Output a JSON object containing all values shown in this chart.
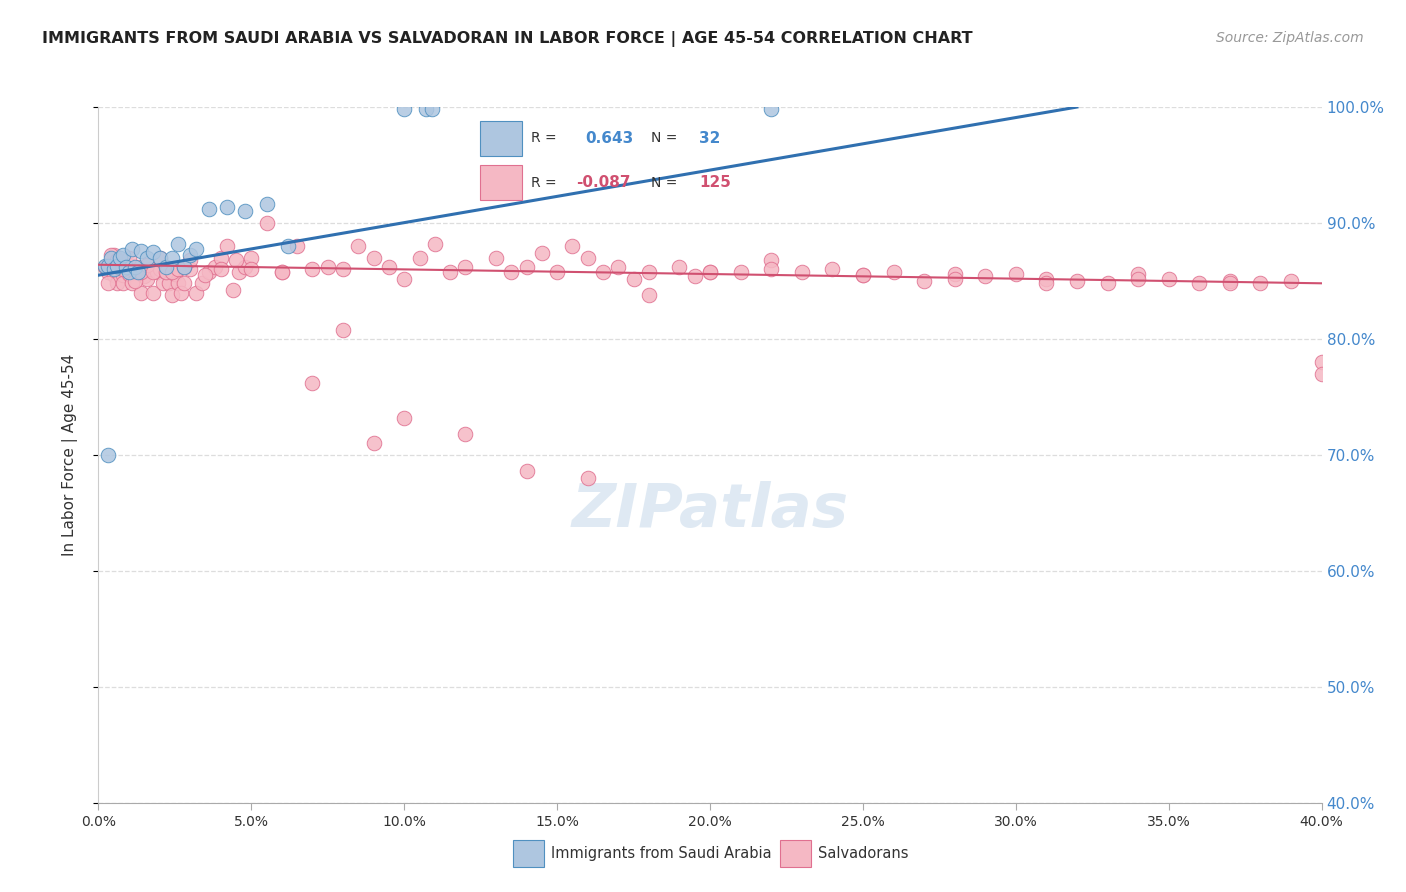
{
  "title": "IMMIGRANTS FROM SAUDI ARABIA VS SALVADORAN IN LABOR FORCE | AGE 45-54 CORRELATION CHART",
  "source": "Source: ZipAtlas.com",
  "ylabel": "In Labor Force | Age 45-54",
  "xlim": [
    0.0,
    0.4
  ],
  "ylim": [
    0.4,
    1.0
  ],
  "blue_R": 0.643,
  "blue_N": 32,
  "pink_R": -0.087,
  "pink_N": 125,
  "blue_color": "#aec6e0",
  "blue_edge_color": "#5090c0",
  "blue_line_color": "#3070b0",
  "pink_color": "#f5b8c4",
  "pink_edge_color": "#e07090",
  "pink_line_color": "#d05070",
  "right_axis_color": "#4488cc",
  "watermark": "ZIPatlas",
  "grid_color": "#dddddd",
  "blue_x": [
    0.002,
    0.003,
    0.004,
    0.005,
    0.006,
    0.007,
    0.008,
    0.009,
    0.01,
    0.011,
    0.012,
    0.013,
    0.014,
    0.016,
    0.018,
    0.02,
    0.022,
    0.024,
    0.026,
    0.028,
    0.03,
    0.032,
    0.036,
    0.042,
    0.048,
    0.055,
    0.062,
    0.1,
    0.107,
    0.109,
    0.22,
    0.003
  ],
  "blue_y": [
    0.863,
    0.863,
    0.87,
    0.86,
    0.863,
    0.87,
    0.872,
    0.862,
    0.858,
    0.878,
    0.862,
    0.858,
    0.876,
    0.87,
    0.875,
    0.87,
    0.862,
    0.87,
    0.882,
    0.862,
    0.872,
    0.878,
    0.912,
    0.914,
    0.91,
    0.916,
    0.88,
    0.998,
    0.998,
    0.998,
    0.998,
    0.7
  ],
  "pink_x": [
    0.002,
    0.003,
    0.004,
    0.005,
    0.005,
    0.006,
    0.007,
    0.008,
    0.008,
    0.009,
    0.01,
    0.01,
    0.011,
    0.012,
    0.013,
    0.014,
    0.015,
    0.016,
    0.017,
    0.018,
    0.019,
    0.02,
    0.021,
    0.022,
    0.023,
    0.024,
    0.025,
    0.026,
    0.027,
    0.028,
    0.03,
    0.032,
    0.034,
    0.036,
    0.038,
    0.04,
    0.042,
    0.044,
    0.046,
    0.048,
    0.05,
    0.055,
    0.06,
    0.065,
    0.07,
    0.075,
    0.08,
    0.085,
    0.09,
    0.095,
    0.1,
    0.105,
    0.11,
    0.115,
    0.12,
    0.13,
    0.135,
    0.14,
    0.145,
    0.15,
    0.155,
    0.16,
    0.165,
    0.17,
    0.175,
    0.18,
    0.19,
    0.195,
    0.2,
    0.21,
    0.22,
    0.23,
    0.24,
    0.25,
    0.26,
    0.27,
    0.28,
    0.29,
    0.3,
    0.31,
    0.32,
    0.33,
    0.34,
    0.35,
    0.36,
    0.37,
    0.38,
    0.39,
    0.4,
    0.003,
    0.004,
    0.006,
    0.008,
    0.01,
    0.012,
    0.014,
    0.016,
    0.018,
    0.02,
    0.022,
    0.024,
    0.026,
    0.028,
    0.03,
    0.035,
    0.04,
    0.045,
    0.05,
    0.06,
    0.07,
    0.08,
    0.09,
    0.1,
    0.12,
    0.14,
    0.16,
    0.18,
    0.2,
    0.22,
    0.25,
    0.28,
    0.31,
    0.34,
    0.37,
    0.4
  ],
  "pink_y": [
    0.862,
    0.858,
    0.864,
    0.855,
    0.872,
    0.848,
    0.862,
    0.855,
    0.848,
    0.862,
    0.856,
    0.864,
    0.848,
    0.858,
    0.862,
    0.84,
    0.854,
    0.852,
    0.86,
    0.84,
    0.858,
    0.86,
    0.848,
    0.858,
    0.848,
    0.838,
    0.856,
    0.848,
    0.84,
    0.848,
    0.86,
    0.84,
    0.848,
    0.858,
    0.862,
    0.87,
    0.88,
    0.842,
    0.858,
    0.862,
    0.87,
    0.9,
    0.858,
    0.88,
    0.86,
    0.862,
    0.86,
    0.88,
    0.87,
    0.862,
    0.852,
    0.87,
    0.882,
    0.858,
    0.862,
    0.87,
    0.858,
    0.862,
    0.874,
    0.858,
    0.88,
    0.87,
    0.858,
    0.862,
    0.852,
    0.858,
    0.862,
    0.854,
    0.858,
    0.858,
    0.868,
    0.858,
    0.86,
    0.855,
    0.858,
    0.85,
    0.856,
    0.854,
    0.856,
    0.852,
    0.85,
    0.848,
    0.856,
    0.852,
    0.848,
    0.85,
    0.848,
    0.85,
    0.78,
    0.848,
    0.872,
    0.868,
    0.86,
    0.87,
    0.85,
    0.858,
    0.864,
    0.858,
    0.87,
    0.858,
    0.858,
    0.86,
    0.862,
    0.868,
    0.855,
    0.86,
    0.868,
    0.86,
    0.858,
    0.762,
    0.808,
    0.71,
    0.732,
    0.718,
    0.686,
    0.68,
    0.838,
    0.858,
    0.86,
    0.855,
    0.852,
    0.848,
    0.852,
    0.848,
    0.77
  ]
}
